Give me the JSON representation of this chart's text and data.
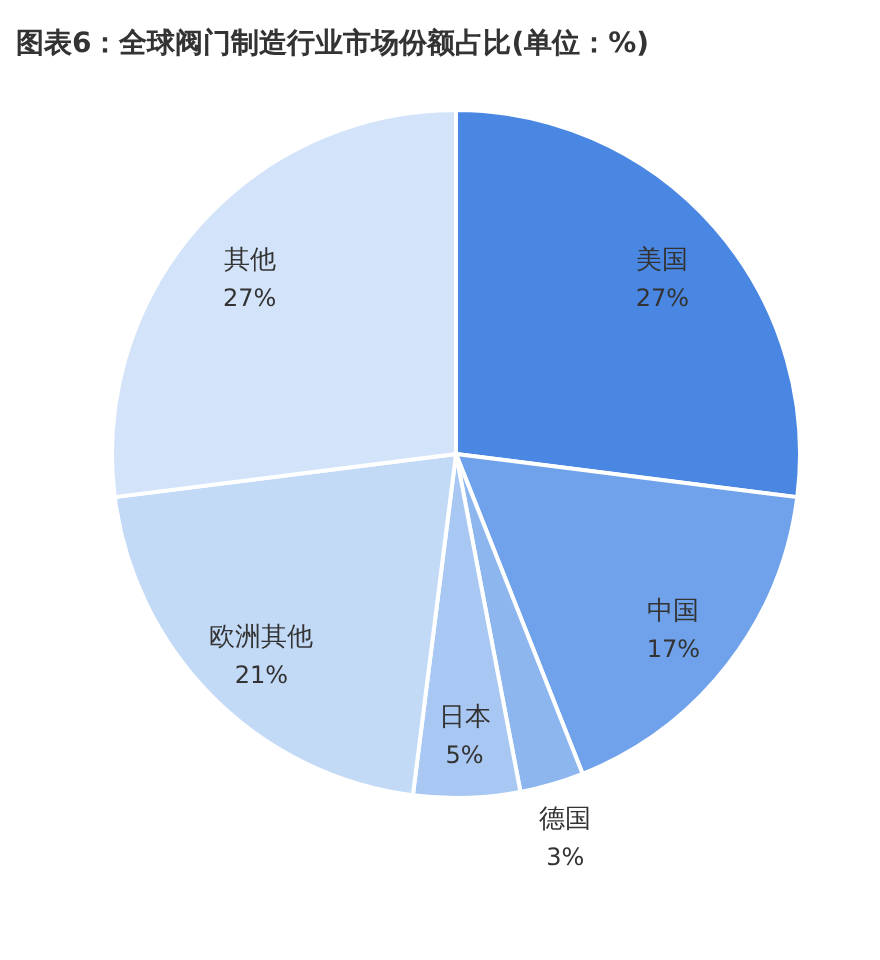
{
  "chart_data": {
    "type": "pie",
    "title": "图表6：全球阀门制造行业市场份额占比(单位：%)",
    "categories": [
      "美国",
      "中国",
      "德国",
      "日本",
      "欧洲其他",
      "其他"
    ],
    "values": [
      27,
      17,
      3,
      5,
      21,
      27
    ],
    "colors": [
      "#4a87e2",
      "#6fa2ea",
      "#8db6ef",
      "#a8c8f3",
      "#c3daf7",
      "#d3e4fa"
    ],
    "value_labels": [
      "27%",
      "17%",
      "3%",
      "5%",
      "21%",
      "27%"
    ]
  }
}
